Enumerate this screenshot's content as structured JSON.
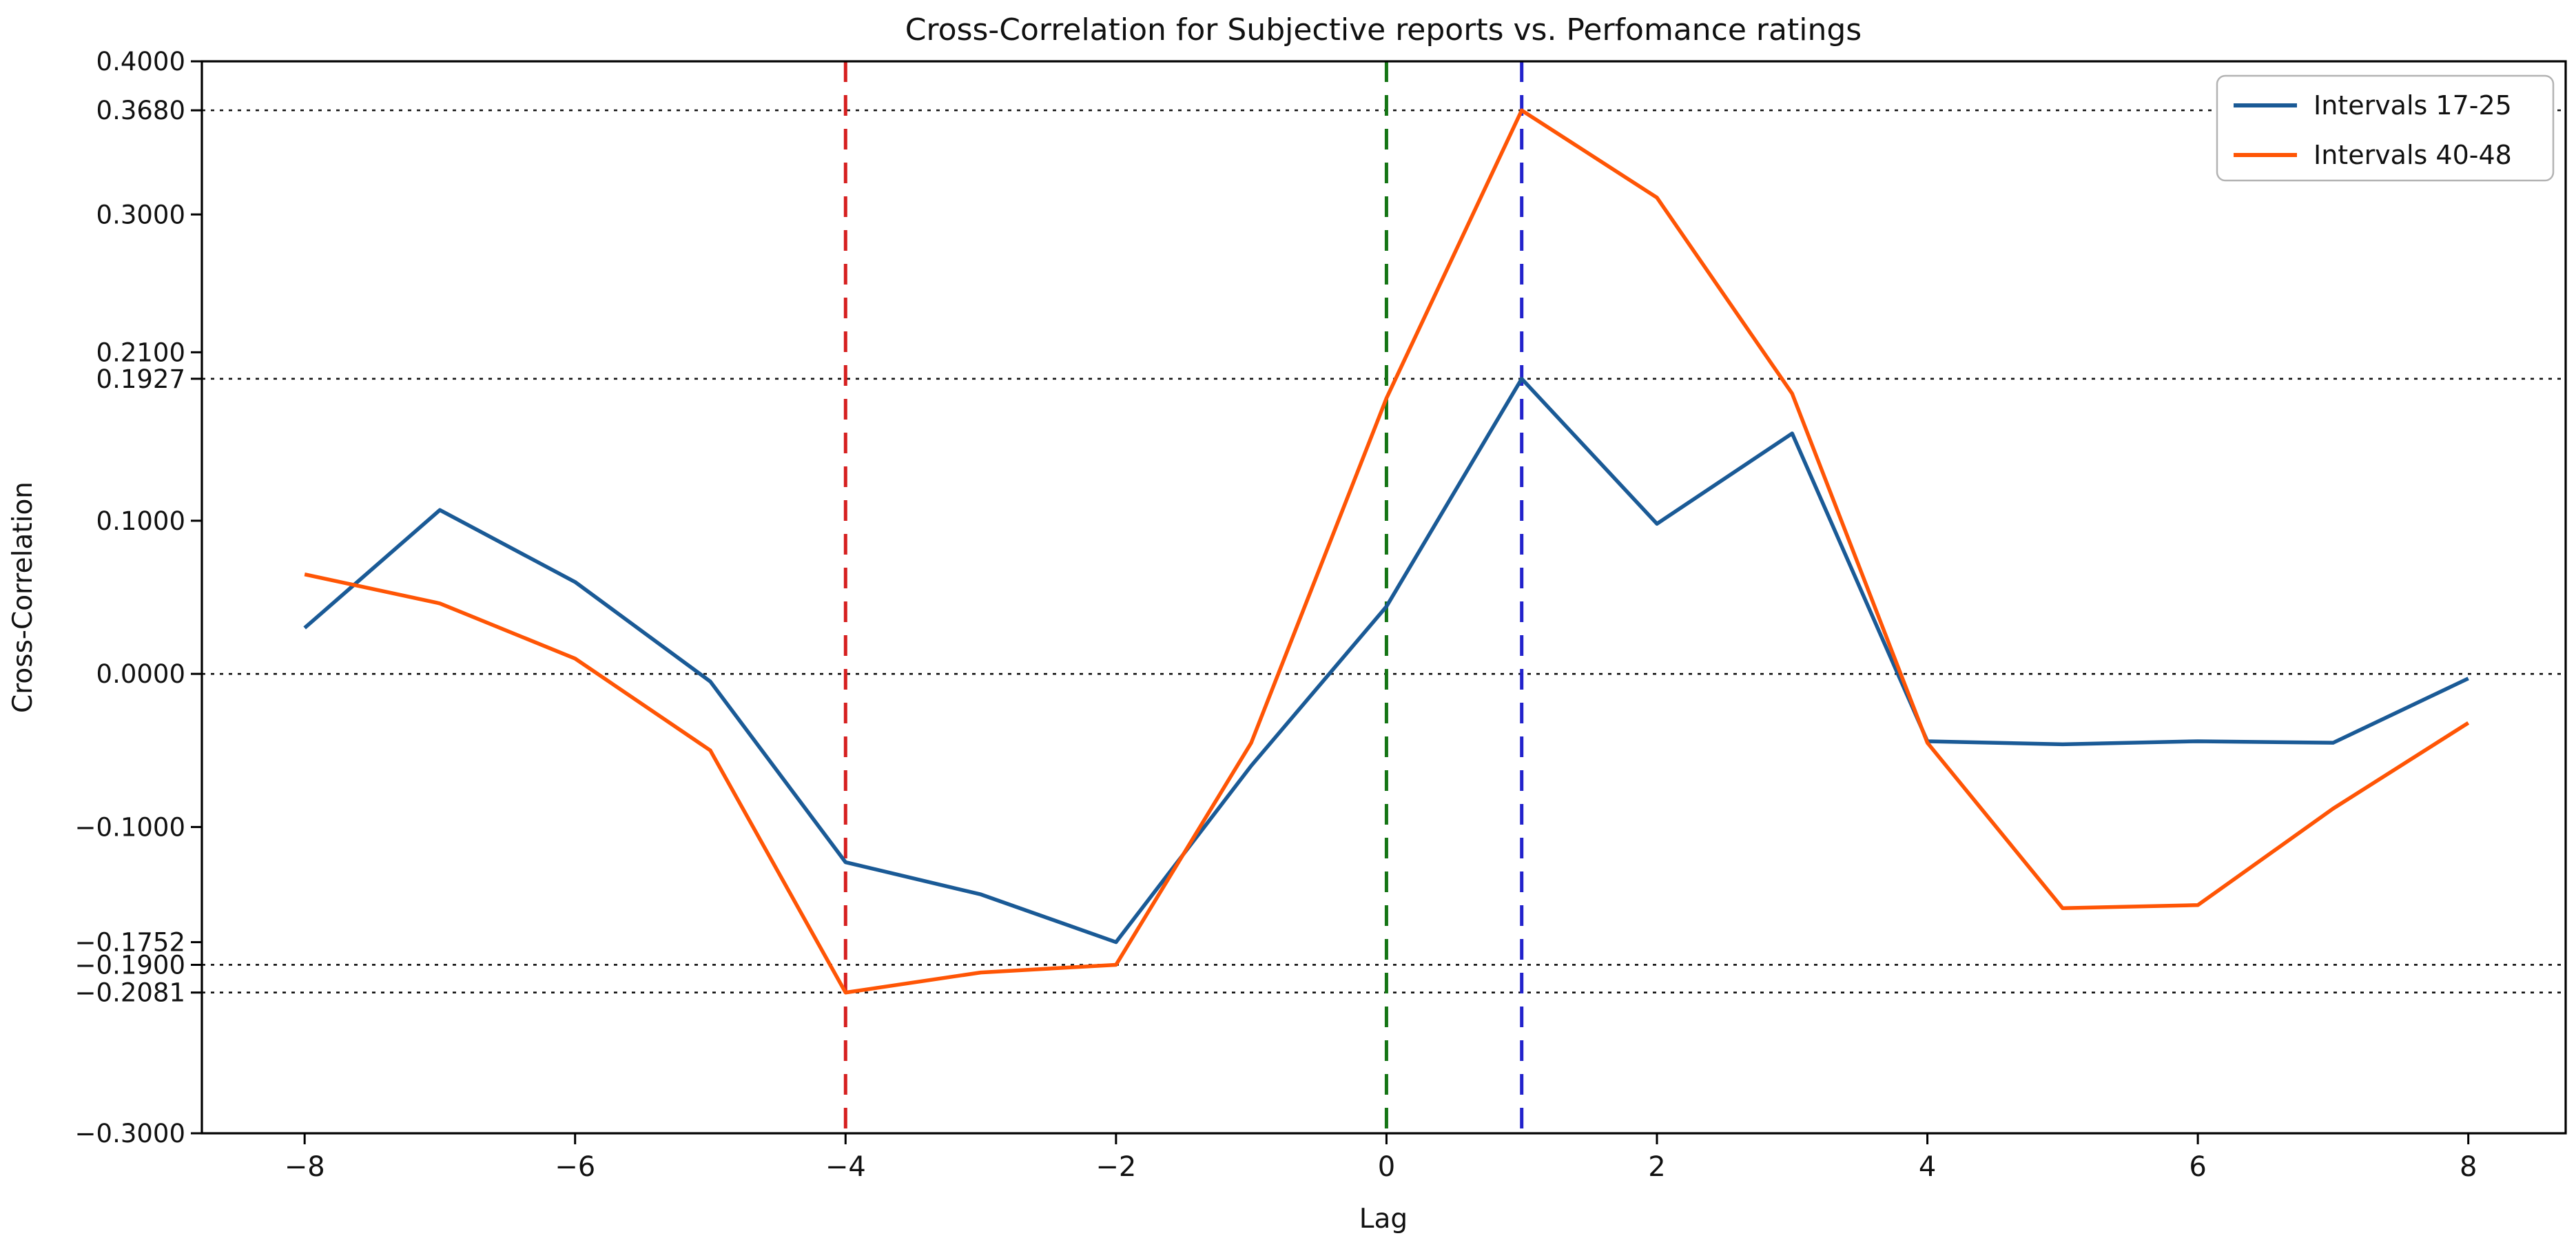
{
  "title": "Cross-Correlation for Subjective reports vs. Perfomance ratings",
  "chart_data": {
    "type": "line",
    "title": "Cross-Correlation for Subjective reports vs. Perfomance ratings",
    "xlabel": "Lag",
    "ylabel": "Cross-Correlation",
    "x": [
      -8,
      -7,
      -6,
      -5,
      -4,
      -3,
      -2,
      -1,
      0,
      1,
      2,
      3,
      4,
      5,
      6,
      7,
      8
    ],
    "series": [
      {
        "name": "Intervals 17-25",
        "color": "#1a5a96",
        "values": [
          0.03,
          0.107,
          0.06,
          -0.005,
          -0.123,
          -0.144,
          -0.1752,
          -0.06,
          0.044,
          0.1927,
          0.098,
          0.157,
          -0.044,
          -0.046,
          -0.044,
          -0.045,
          -0.003
        ]
      },
      {
        "name": "Intervals 40-48",
        "color": "#ff5505",
        "values": [
          0.065,
          0.046,
          0.01,
          -0.05,
          -0.2081,
          -0.195,
          -0.19,
          -0.045,
          0.18,
          0.368,
          0.311,
          0.183,
          -0.045,
          -0.153,
          -0.151,
          -0.088,
          -0.032
        ]
      }
    ],
    "xlim": [
      -8.76,
      8.72
    ],
    "ylim": [
      -0.3,
      0.4
    ],
    "x_ticks": {
      "values": [
        -8,
        -6,
        -4,
        -2,
        0,
        2,
        4,
        6,
        8
      ],
      "labels": [
        "−8",
        "−6",
        "−4",
        "−2",
        "0",
        "2",
        "4",
        "6",
        "8"
      ]
    },
    "y_ticks": {
      "values": [
        0.4,
        0.368,
        0.3,
        0.21,
        0.1927,
        0.1,
        0.0,
        -0.1,
        -0.1752,
        -0.19,
        -0.2081,
        -0.3
      ],
      "labels": [
        "0.4000",
        "0.3680",
        "0.3000",
        "0.2100",
        "0.1927",
        "0.1000",
        "0.0000",
        "−0.1000",
        "−0.1752",
        "−0.1900",
        "−0.2081",
        "−0.3000"
      ]
    },
    "h_guidelines": {
      "style": "dotted",
      "color": "#111111",
      "values": [
        0.368,
        0.1927,
        0.0,
        -0.19,
        -0.2081
      ]
    },
    "v_guidelines": [
      {
        "x": -4,
        "color": "#d62020",
        "style": "dashed"
      },
      {
        "x": 0,
        "color": "#157515",
        "style": "dashed"
      },
      {
        "x": 1,
        "color": "#2222cc",
        "style": "dashed"
      }
    ],
    "legend": {
      "position": "upper-right",
      "entries": [
        "Intervals 17-25",
        "Intervals 40-48"
      ]
    },
    "grid": false
  }
}
